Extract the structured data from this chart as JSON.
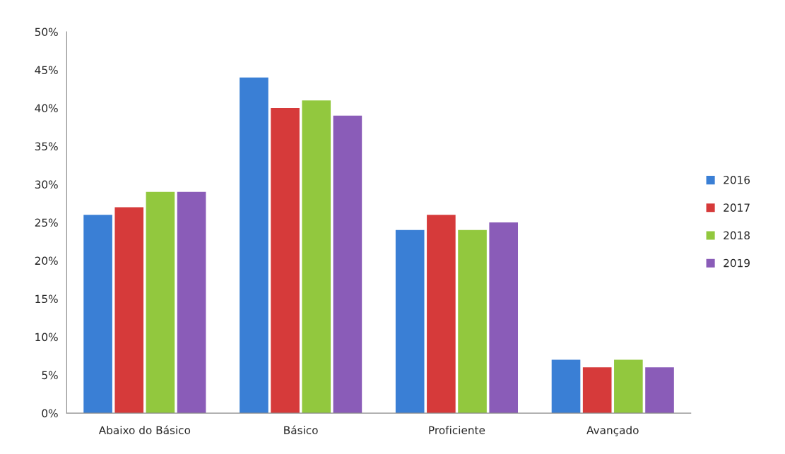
{
  "chart_data": {
    "type": "bar",
    "categories": [
      "Abaixo do Básico",
      "Básico",
      "Proficiente",
      "Avançado"
    ],
    "series": [
      {
        "name": "2016",
        "color": "#3a7fd5",
        "values": [
          26,
          44,
          24,
          7
        ]
      },
      {
        "name": "2017",
        "color": "#d63a3a",
        "values": [
          27,
          40,
          26,
          6
        ]
      },
      {
        "name": "2018",
        "color": "#92c83e",
        "values": [
          29,
          41,
          24,
          7
        ]
      },
      {
        "name": "2019",
        "color": "#8a5cb8",
        "values": [
          29,
          39,
          25,
          6
        ]
      }
    ],
    "ylim": [
      0,
      50
    ],
    "yticks": [
      {
        "value": 0,
        "label": "0%"
      },
      {
        "value": 5,
        "label": "5%"
      },
      {
        "value": 10,
        "label": "10%"
      },
      {
        "value": 15,
        "label": "15%"
      },
      {
        "value": 20,
        "label": "20%"
      },
      {
        "value": 25,
        "label": "25%"
      },
      {
        "value": 30,
        "label": "30%"
      },
      {
        "value": 35,
        "label": "35%"
      },
      {
        "value": 40,
        "label": "40%"
      },
      {
        "value": 45,
        "label": "45%"
      },
      {
        "value": 50,
        "label": "50%"
      }
    ],
    "grid": false,
    "legend": "right"
  }
}
